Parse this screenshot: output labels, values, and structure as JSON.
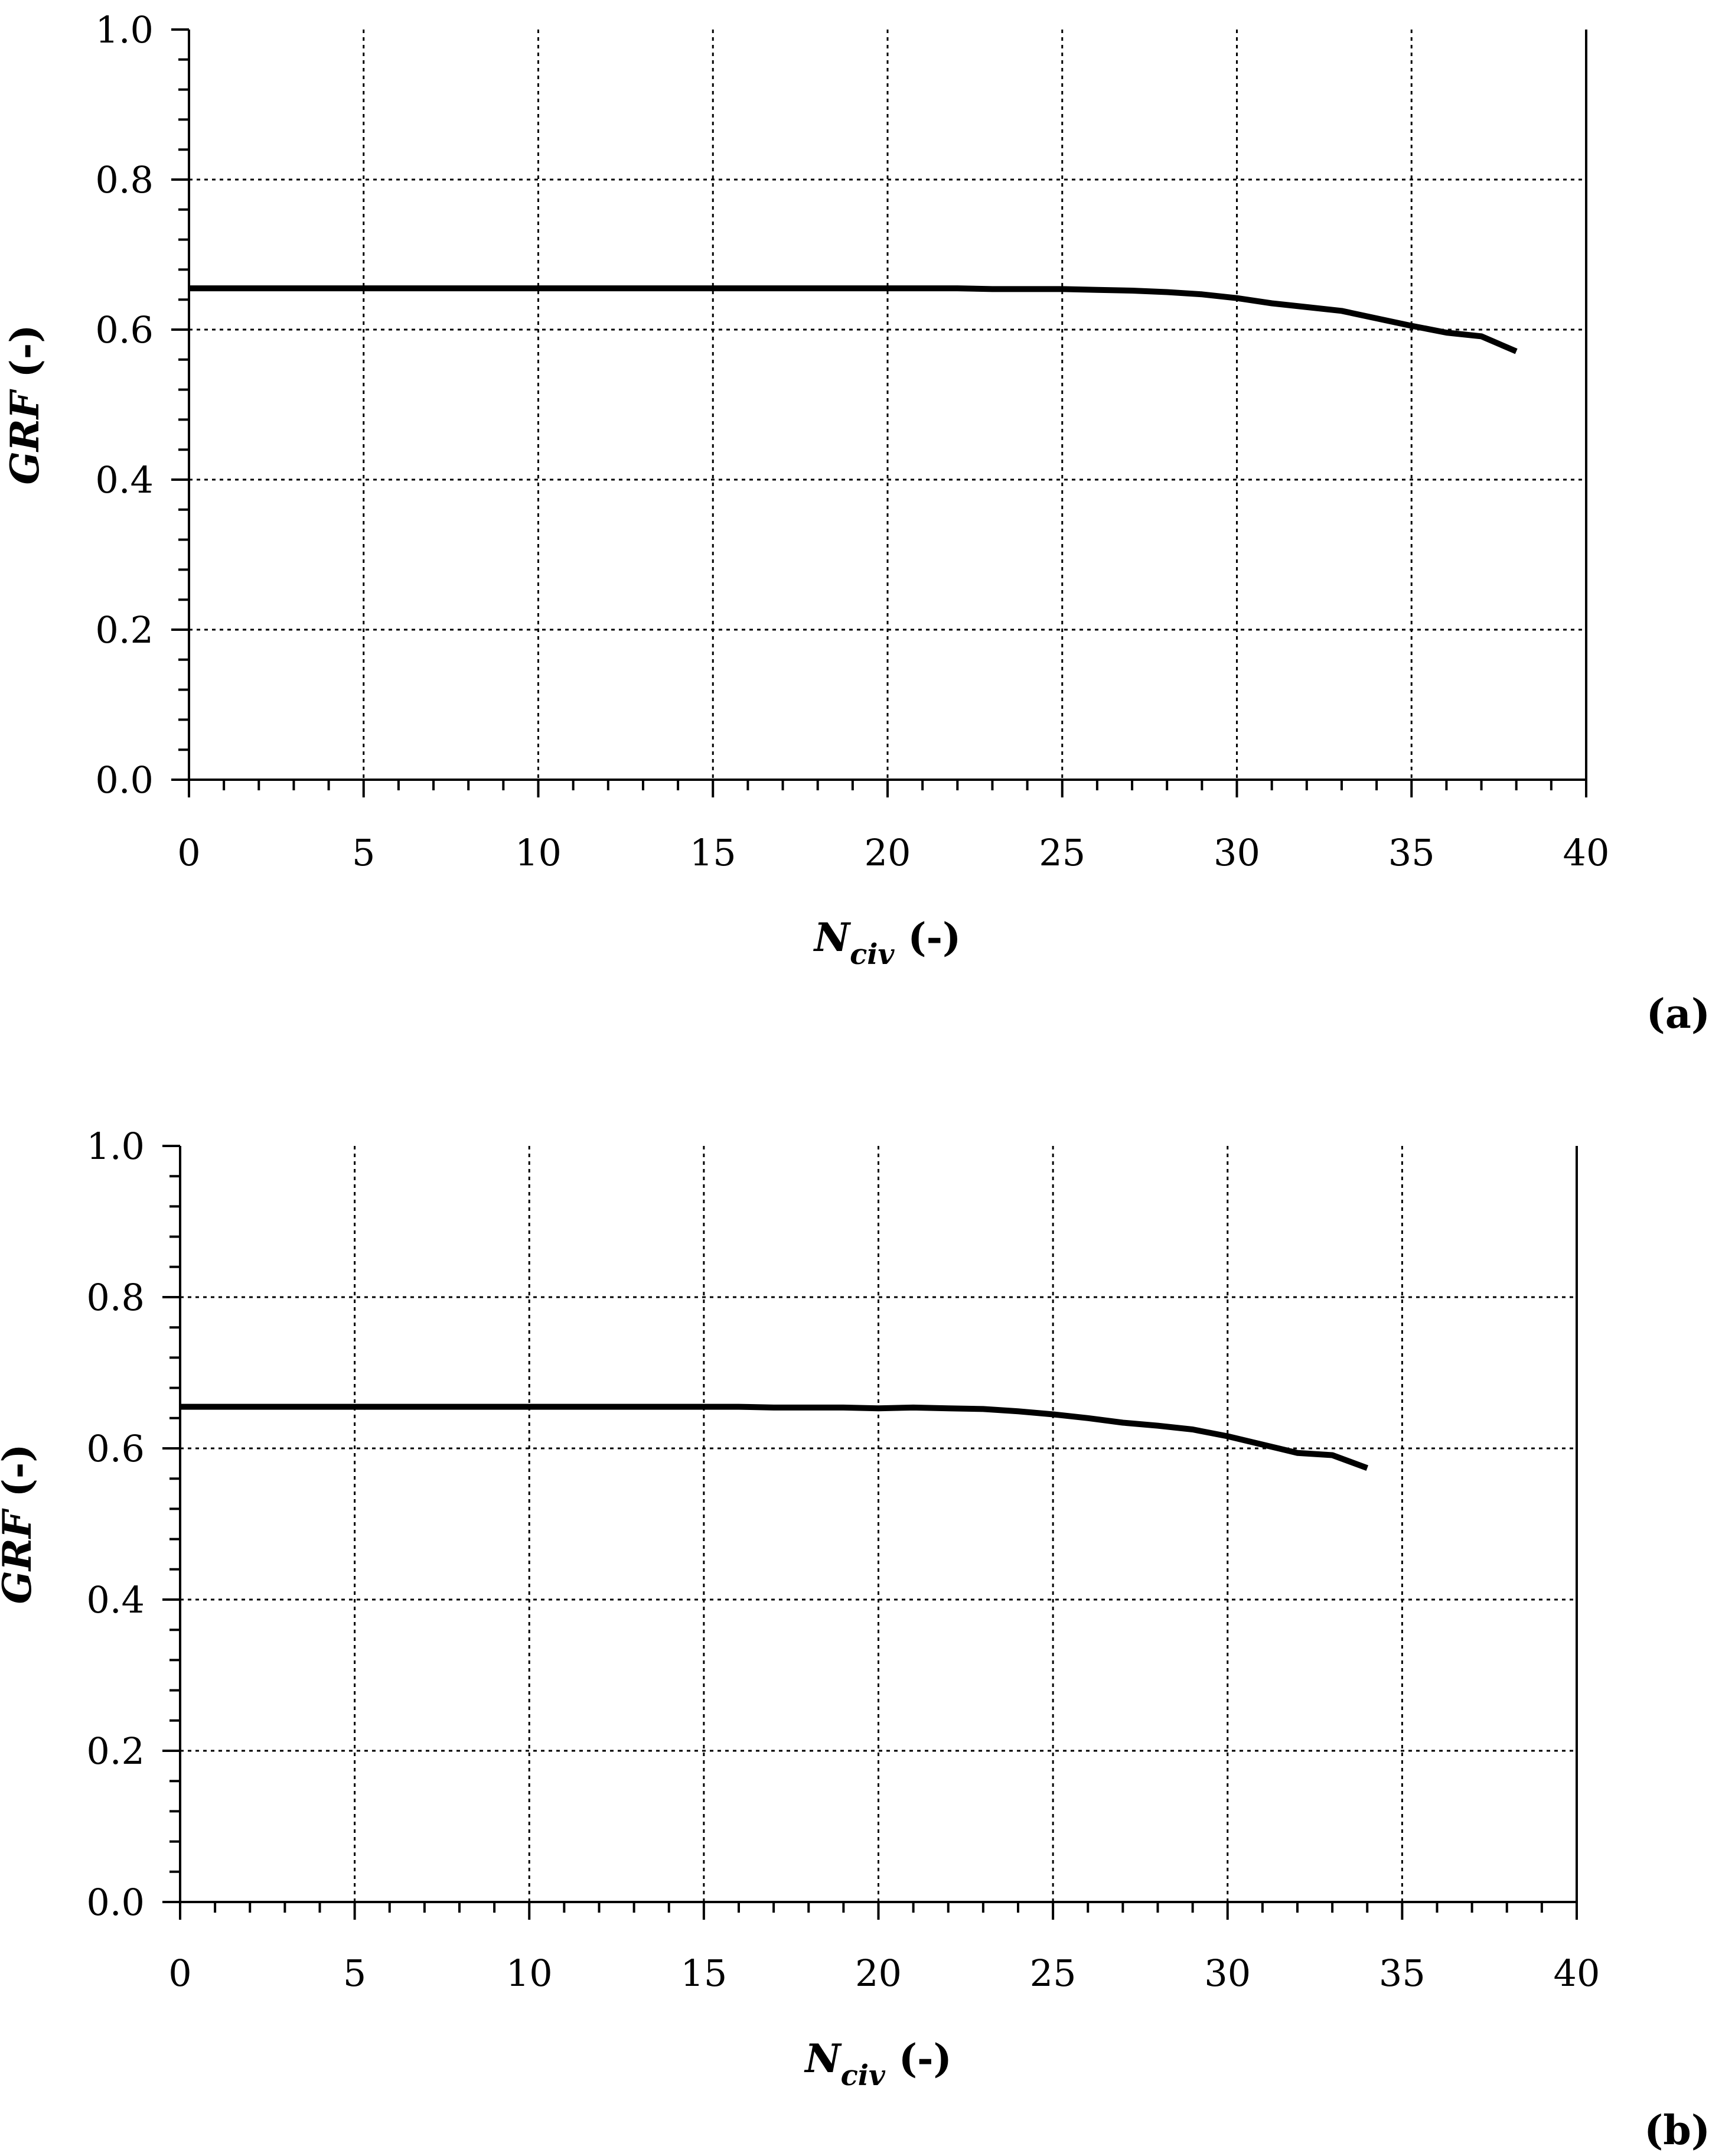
{
  "chart_data": [
    {
      "type": "line",
      "panel_label": "(a)",
      "xlabel": {
        "main": "N",
        "sub": "civ",
        "unit": " (-)"
      },
      "ylabel": {
        "main": "GRF",
        "unit": " (-)"
      },
      "xlim": [
        0,
        40
      ],
      "ylim": [
        0,
        1.0
      ],
      "x_ticks": [
        0,
        5,
        10,
        15,
        20,
        25,
        30,
        35,
        40
      ],
      "y_ticks": [
        0.0,
        0.2,
        0.4,
        0.6,
        0.8,
        1.0
      ],
      "x_tick_labels": [
        "0",
        "5",
        "10",
        "15",
        "20",
        "25",
        "30",
        "35",
        "40"
      ],
      "y_tick_labels": [
        "0.0",
        "0.2",
        "0.4",
        "0.6",
        "0.8",
        "1.0"
      ],
      "grid": true,
      "series": [
        {
          "color": "#000000",
          "x": [
            0,
            5,
            10,
            15,
            20,
            22,
            23,
            24,
            25,
            26,
            27,
            28,
            29,
            30,
            31,
            32,
            33,
            34,
            35,
            36,
            37,
            38
          ],
          "y": [
            0.655,
            0.655,
            0.655,
            0.655,
            0.655,
            0.655,
            0.654,
            0.654,
            0.654,
            0.653,
            0.652,
            0.65,
            0.647,
            0.642,
            0.635,
            0.63,
            0.625,
            0.615,
            0.605,
            0.596,
            0.591,
            0.571
          ]
        }
      ]
    },
    {
      "type": "line",
      "panel_label": "(b)",
      "xlabel": {
        "main": "N",
        "sub": "civ",
        "unit": " (-)"
      },
      "ylabel": {
        "main": "GRF",
        "unit": " (-)"
      },
      "xlim": [
        0,
        40
      ],
      "ylim": [
        0,
        1.0
      ],
      "x_ticks": [
        0,
        5,
        10,
        15,
        20,
        25,
        30,
        35,
        40
      ],
      "y_ticks": [
        0.0,
        0.2,
        0.4,
        0.6,
        0.8,
        1.0
      ],
      "x_tick_labels": [
        "0",
        "5",
        "10",
        "15",
        "20",
        "25",
        "30",
        "35",
        "40"
      ],
      "y_tick_labels": [
        "0.0",
        "0.2",
        "0.4",
        "0.6",
        "0.8",
        "1.0"
      ],
      "grid": true,
      "series": [
        {
          "color": "#000000",
          "x": [
            0,
            5,
            10,
            15,
            16,
            17,
            18,
            19,
            20,
            21,
            22,
            23,
            24,
            25,
            26,
            27,
            28,
            29,
            30,
            31,
            32,
            33,
            34
          ],
          "y": [
            0.655,
            0.655,
            0.655,
            0.655,
            0.655,
            0.654,
            0.654,
            0.654,
            0.653,
            0.654,
            0.653,
            0.652,
            0.649,
            0.645,
            0.64,
            0.634,
            0.63,
            0.625,
            0.616,
            0.605,
            0.594,
            0.591,
            0.574
          ]
        }
      ]
    }
  ]
}
